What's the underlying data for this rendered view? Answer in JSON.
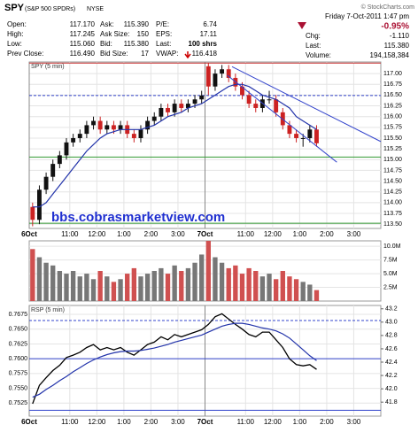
{
  "header": {
    "symbol": "SPY",
    "name": "(S&P 500 SPDRs)",
    "exchange": "NYSE",
    "source": "© StockCharts.com",
    "date": "Friday  7-Oct-2011  1:47 pm",
    "change": "-0.95%",
    "fields": [
      {
        "label": "Open:",
        "value": "117.170"
      },
      {
        "label": "High:",
        "value": "117.245"
      },
      {
        "label": "Low:",
        "value": "115.060"
      },
      {
        "label": "Prev Close:",
        "value": "116.490"
      },
      {
        "label": "Ask:",
        "value": "115.390"
      },
      {
        "label": "Ask Size:",
        "value": "150"
      },
      {
        "label": "Bid:",
        "value": "115.380"
      },
      {
        "label": "Bid Size:",
        "value": "17"
      },
      {
        "label": "P/E:",
        "value": "6.74"
      },
      {
        "label": "EPS:",
        "value": "17.11"
      },
      {
        "label": "Last:",
        "value": "100 shrs"
      },
      {
        "label": "VWAP:",
        "value": "116.418"
      }
    ],
    "summary": [
      {
        "label": "Chg:",
        "value": "-1.110"
      },
      {
        "label": "Last:",
        "value": "115.380"
      },
      {
        "label": "Volume:",
        "value": "194,158,384"
      }
    ]
  },
  "chart_data": [
    {
      "type": "candlestick",
      "label": "SPY (5 min)",
      "yaxis": "right",
      "watermark": "bbs.cobrasmarketview.com",
      "xlim": [
        0,
        52
      ],
      "xticks": [
        {
          "value": 0,
          "label": "6Oct"
        },
        {
          "value": 6,
          "label": "11:00"
        },
        {
          "value": 10,
          "label": "12:00"
        },
        {
          "value": 14,
          "label": "1:00"
        },
        {
          "value": 18,
          "label": "2:00"
        },
        {
          "value": 22,
          "label": "3:00"
        },
        {
          "value": 26,
          "label": "7Oct"
        },
        {
          "value": 32,
          "label": "11:00"
        },
        {
          "value": 36,
          "label": "12:00"
        },
        {
          "value": 40,
          "label": "1:00"
        },
        {
          "value": 44,
          "label": "2:00"
        },
        {
          "value": 48,
          "label": "3:00"
        }
      ],
      "ylim": [
        113.4,
        117.27
      ],
      "yticks": [
        {
          "value": 117,
          "label": "117.00"
        },
        {
          "value": 116.75,
          "label": "116.75"
        },
        {
          "value": 116.5,
          "label": "116.50"
        },
        {
          "value": 116.25,
          "label": "116.25"
        },
        {
          "value": 116,
          "label": "116.00"
        },
        {
          "value": 115.75,
          "label": "115.75"
        },
        {
          "value": 115.5,
          "label": "115.50"
        },
        {
          "value": 115.25,
          "label": "115.25"
        },
        {
          "value": 115,
          "label": "115.00"
        },
        {
          "value": 114.75,
          "label": "114.75"
        },
        {
          "value": 114.5,
          "label": "114.50"
        },
        {
          "value": 114.25,
          "label": "114.25"
        },
        {
          "value": 114,
          "label": "114.00"
        },
        {
          "value": 113.75,
          "label": "113.75"
        },
        {
          "value": 113.5,
          "label": "113.50"
        }
      ],
      "up_color": "#111111",
      "down_color": "#cc2222",
      "open": [
        113.9,
        113.6,
        114.3,
        114.6,
        114.9,
        115.1,
        115.4,
        115.5,
        115.6,
        115.8,
        115.9,
        115.7,
        115.8,
        115.7,
        115.8,
        115.6,
        115.5,
        115.7,
        115.9,
        116.0,
        116.2,
        116.1,
        116.3,
        116.2,
        116.3,
        116.4,
        117.17,
        116.7,
        117.0,
        117.1,
        116.9,
        116.7,
        116.5,
        116.3,
        116.2,
        116.4,
        116.4,
        116.1,
        115.8,
        115.6,
        115.5,
        115.5,
        115.7
      ],
      "high": [
        114.0,
        114.4,
        114.7,
        115.0,
        115.2,
        115.5,
        115.6,
        115.7,
        115.9,
        116.0,
        116.0,
        115.9,
        115.9,
        115.9,
        115.9,
        115.7,
        115.8,
        116.0,
        116.1,
        116.3,
        116.3,
        116.4,
        116.4,
        116.4,
        116.5,
        116.6,
        117.245,
        117.1,
        117.2,
        117.2,
        117.0,
        116.8,
        116.6,
        116.4,
        116.5,
        116.6,
        116.5,
        116.2,
        115.9,
        115.7,
        115.6,
        115.8,
        115.8
      ],
      "low": [
        113.45,
        113.5,
        114.2,
        114.5,
        114.8,
        115.0,
        115.3,
        115.4,
        115.5,
        115.7,
        115.6,
        115.6,
        115.6,
        115.6,
        115.5,
        115.4,
        115.4,
        115.6,
        115.8,
        115.9,
        116.0,
        116.0,
        116.1,
        116.1,
        116.2,
        116.3,
        116.5,
        116.6,
        116.9,
        116.8,
        116.6,
        116.4,
        116.2,
        116.1,
        116.1,
        116.3,
        116.0,
        115.7,
        115.5,
        115.4,
        115.3,
        115.4,
        115.3
      ],
      "close": [
        113.6,
        114.3,
        114.6,
        114.9,
        115.1,
        115.4,
        115.5,
        115.6,
        115.8,
        115.9,
        115.7,
        115.8,
        115.7,
        115.8,
        115.6,
        115.5,
        115.7,
        115.9,
        116.0,
        116.2,
        116.1,
        116.3,
        116.2,
        116.3,
        116.4,
        116.49,
        116.7,
        117.0,
        117.1,
        116.9,
        116.7,
        116.5,
        116.3,
        116.2,
        116.4,
        116.4,
        116.1,
        115.8,
        115.6,
        115.5,
        115.5,
        115.7,
        115.38
      ],
      "series": [
        {
          "color": "#2233aa",
          "values": [
            113.9,
            113.9,
            114.0,
            114.2,
            114.4,
            114.6,
            114.8,
            115.0,
            115.2,
            115.35,
            115.5,
            115.6,
            115.65,
            115.7,
            115.7,
            115.7,
            115.7,
            115.75,
            115.8,
            115.9,
            116.0,
            116.05,
            116.1,
            116.2,
            116.25,
            116.3,
            116.4,
            116.5,
            116.6,
            116.7,
            116.75,
            116.75,
            116.7,
            116.6,
            116.5,
            116.45,
            116.4,
            116.3,
            116.2,
            116.0,
            115.9,
            115.8,
            115.7
          ]
        }
      ],
      "levels": [
        {
          "value": 117.245,
          "color": "#cc3333",
          "dashed": false
        },
        {
          "value": 116.49,
          "color": "#3344cc",
          "dashed": true
        },
        {
          "value": 115.06,
          "color": "#339933",
          "dashed": false
        },
        {
          "value": 113.52,
          "color": "#339933",
          "dashed": false
        }
      ],
      "trendlines": [
        {
          "color": "#3344cc",
          "points": [
            [
              30,
              117.16
            ],
            [
              52,
              115.42
            ]
          ]
        },
        {
          "color": "#3344cc",
          "points": [
            [
              29.3,
              116.96
            ],
            [
              45.5,
              114.94
            ]
          ]
        }
      ]
    },
    {
      "type": "bar",
      "yaxis": "right",
      "xlim": [
        0,
        52
      ],
      "ylim": [
        0,
        11000000
      ],
      "yticks": [
        {
          "value": 10000000,
          "label": "10.0M"
        },
        {
          "value": 7500000,
          "label": "7.5M"
        },
        {
          "value": 5000000,
          "label": "5.0M"
        },
        {
          "value": 2500000,
          "label": "2.5M"
        }
      ],
      "up_color": "#777777",
      "down_color": "#d05050",
      "values": [
        9500000,
        8000000,
        7000000,
        6500000,
        5500000,
        5000000,
        5500000,
        4500000,
        5000000,
        4000000,
        5500000,
        4500000,
        3500000,
        4000000,
        5000000,
        6000000,
        4500000,
        5000000,
        5500000,
        6000000,
        5000000,
        6500000,
        5500000,
        6000000,
        7000000,
        8500000,
        11000000,
        8000000,
        7000000,
        6000000,
        6500000,
        5000000,
        6000000,
        5500000,
        4500000,
        5000000,
        4000000,
        5500000,
        4500000,
        4000000,
        3500000,
        3000000,
        2000000
      ]
    },
    {
      "type": "line",
      "label": "RSP (5 min)",
      "yaxis": "left",
      "color": "#000000",
      "xlim": [
        0,
        52
      ],
      "xticks": [
        {
          "value": 0,
          "label": "6Oct"
        },
        {
          "value": 6,
          "label": "11:00"
        },
        {
          "value": 10,
          "label": "12:00"
        },
        {
          "value": 14,
          "label": "1:00"
        },
        {
          "value": 18,
          "label": "2:00"
        },
        {
          "value": 22,
          "label": "3:00"
        },
        {
          "value": 26,
          "label": "7Oct"
        },
        {
          "value": 32,
          "label": "11:00"
        },
        {
          "value": 36,
          "label": "12:00"
        },
        {
          "value": 40,
          "label": "1:00"
        },
        {
          "value": 44,
          "label": "2:00"
        },
        {
          "value": 48,
          "label": "3:00"
        }
      ],
      "ylim": [
        0.7503,
        0.769
      ],
      "yticks": [
        0.7675,
        {
          "value": 0.765,
          "label": "0.7650"
        },
        0.7625,
        {
          "value": 0.76,
          "label": "0.7600"
        },
        0.7575,
        {
          "value": 0.755,
          "label": "0.7550"
        },
        0.7525
      ],
      "y2lim": [
        41.59,
        43.25
      ],
      "y2ticks": [
        43.2,
        {
          "value": 43,
          "label": "43.0"
        },
        42.8,
        42.6,
        42.4,
        42.2,
        {
          "value": 42,
          "label": "42.0"
        },
        41.8
      ],
      "values": [
        0.7524,
        0.7555,
        0.7568,
        0.758,
        0.7589,
        0.7602,
        0.7606,
        0.7611,
        0.7619,
        0.7624,
        0.7615,
        0.7619,
        0.7615,
        0.7619,
        0.7611,
        0.7606,
        0.7615,
        0.7624,
        0.7628,
        0.7637,
        0.7632,
        0.7641,
        0.7637,
        0.7641,
        0.7645,
        0.7649,
        0.7658,
        0.7671,
        0.7676,
        0.7667,
        0.7658,
        0.765,
        0.7641,
        0.7637,
        0.7645,
        0.7645,
        0.7632,
        0.7619,
        0.76,
        0.759,
        0.7588,
        0.759,
        0.7582
      ],
      "series": [
        {
          "color": "#2233aa",
          "values": [
            0.7535,
            0.754,
            0.7548,
            0.7555,
            0.7563,
            0.757,
            0.7578,
            0.7585,
            0.7592,
            0.7598,
            0.7603,
            0.7607,
            0.761,
            0.7612,
            0.7613,
            0.7613,
            0.7614,
            0.7616,
            0.7618,
            0.7621,
            0.7624,
            0.7628,
            0.7631,
            0.7634,
            0.7637,
            0.764,
            0.7645,
            0.765,
            0.7655,
            0.7658,
            0.766,
            0.766,
            0.7658,
            0.7655,
            0.7652,
            0.765,
            0.7647,
            0.7642,
            0.7635,
            0.7625,
            0.7615,
            0.7605,
            0.7597
          ]
        }
      ],
      "levels": [
        {
          "value": 0.76645,
          "color": "#3344cc",
          "dashed": true
        },
        {
          "value": 0.76,
          "color": "#3344cc",
          "dashed": false
        },
        {
          "value": 0.7513,
          "color": "#3344cc",
          "dashed": false
        }
      ]
    }
  ]
}
